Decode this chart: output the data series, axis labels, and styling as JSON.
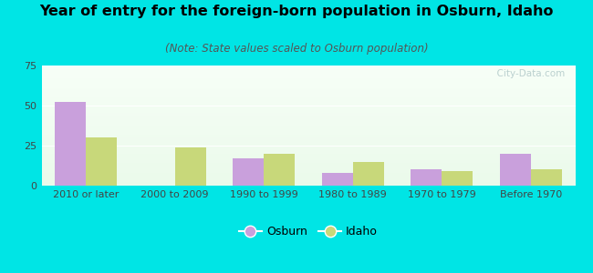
{
  "title": "Year of entry for the foreign-born population in Osburn, Idaho",
  "subtitle": "(Note: State values scaled to Osburn population)",
  "categories": [
    "2010 or later",
    "2000 to 2009",
    "1990 to 1999",
    "1980 to 1989",
    "1970 to 1979",
    "Before 1970"
  ],
  "osburn_values": [
    52,
    0,
    17,
    8,
    10,
    20
  ],
  "idaho_values": [
    30,
    24,
    20,
    15,
    9,
    10
  ],
  "osburn_color": "#c9a0dc",
  "idaho_color": "#c8d87a",
  "background_color": "#00e5e5",
  "ylim": [
    0,
    75
  ],
  "yticks": [
    0,
    25,
    50,
    75
  ],
  "bar_width": 0.35,
  "title_fontsize": 11.5,
  "subtitle_fontsize": 8.5,
  "tick_fontsize": 8,
  "legend_fontsize": 9,
  "watermark": "  City-Data.com"
}
